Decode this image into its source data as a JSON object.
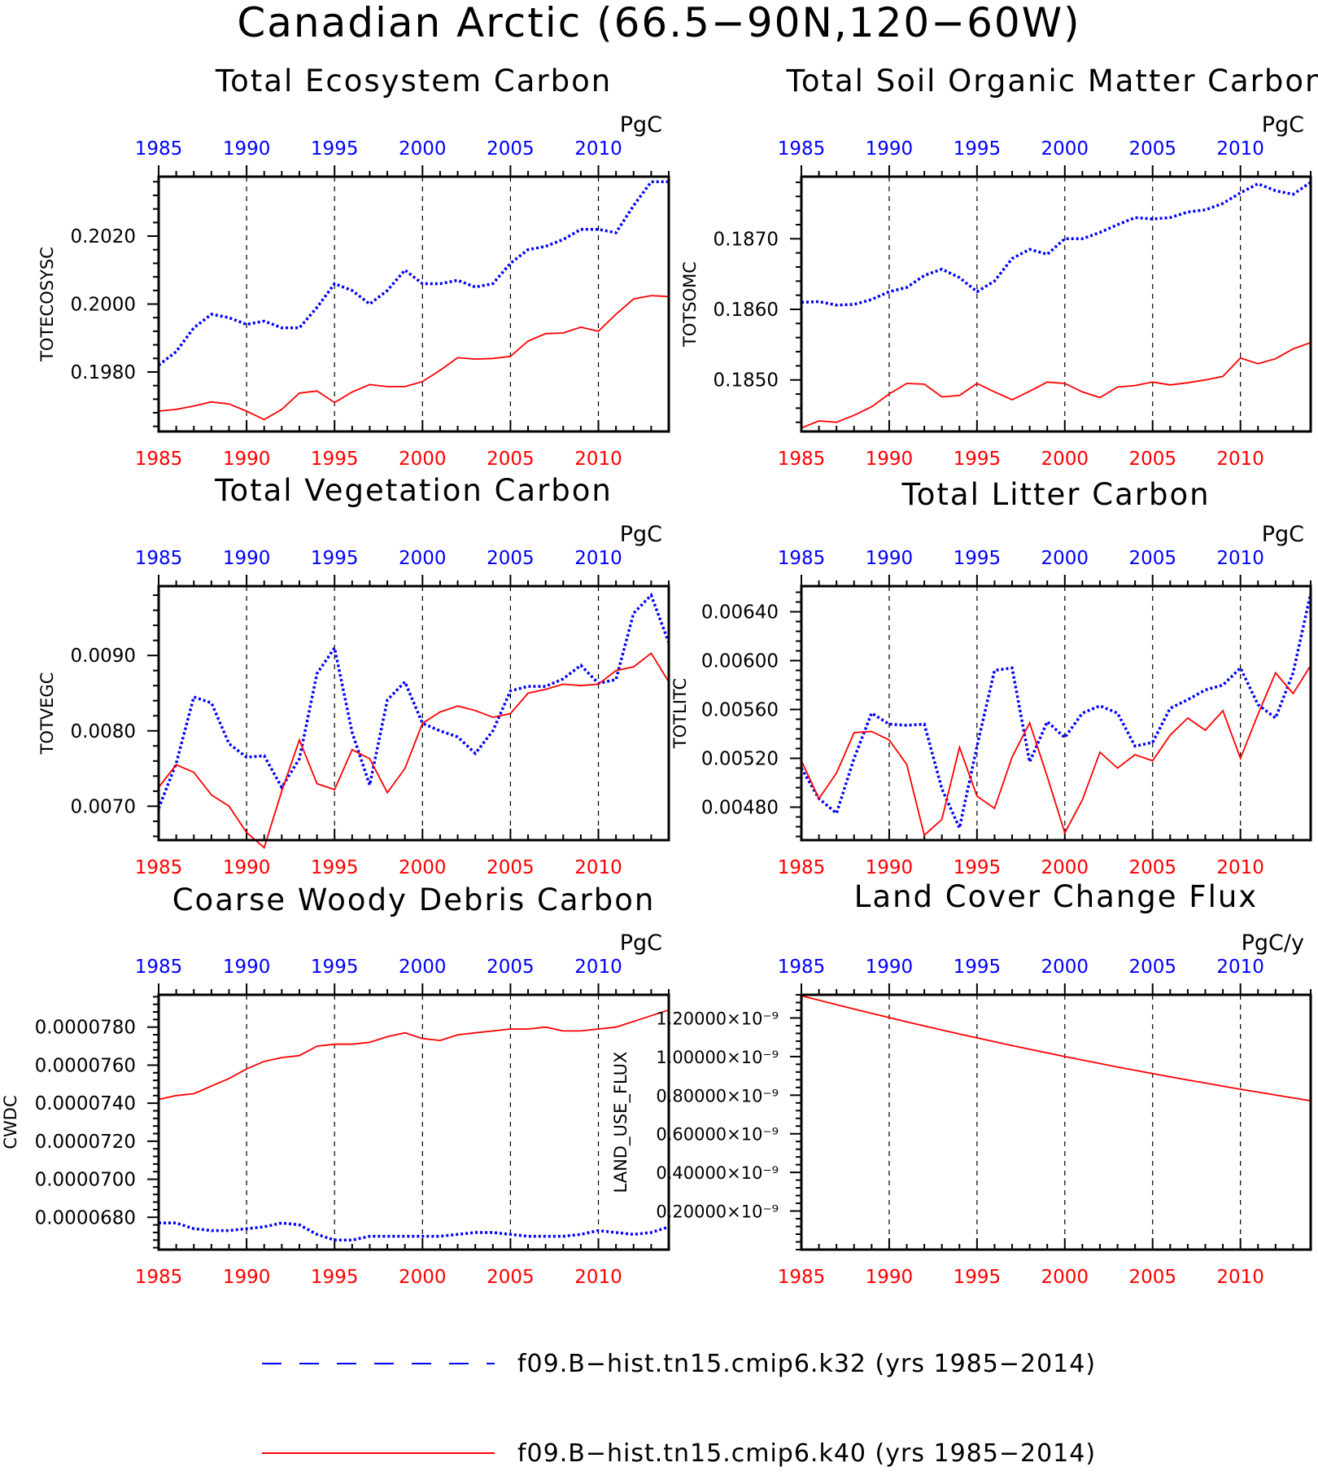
{
  "title": "Canadian Arctic (66.5−90N,120−60W)",
  "colors": {
    "k32": "#0000ff",
    "k40": "#ff0000",
    "axis": "#000000",
    "grid": "#000000"
  },
  "legend": [
    {
      "label": "f09.B−hist.tn15.cmip6.k32 (yrs 1985−2014)",
      "style": "dashed",
      "color": "#0000ff"
    },
    {
      "label": "f09.B−hist.tn15.cmip6.k40 (yrs 1985−2014)",
      "style": "solid",
      "color": "#ff0000"
    }
  ],
  "chart_data": [
    {
      "type": "line",
      "title": "Total Ecosystem Carbon",
      "ylabel": "TOTECOSYSC",
      "unit": "PgC",
      "xlim": [
        1985,
        2014
      ],
      "xticks": [
        1985,
        1990,
        1995,
        2000,
        2005,
        2010
      ],
      "ylim": [
        0.19625,
        0.20375
      ],
      "yticks": [
        0.198,
        0.2,
        0.202
      ],
      "ytick_labels": [
        "0.1980",
        "0.2000",
        "0.2020"
      ],
      "x": [
        1985,
        1986,
        1987,
        1988,
        1989,
        1990,
        1991,
        1992,
        1993,
        1994,
        1995,
        1996,
        1997,
        1998,
        1999,
        2000,
        2001,
        2002,
        2003,
        2004,
        2005,
        2006,
        2007,
        2008,
        2009,
        2010,
        2011,
        2012,
        2013,
        2014
      ],
      "series": [
        {
          "name": "f09.B−hist.tn15.cmip6.k32 (yrs 1985−2014)",
          "style": "dashed",
          "values": [
            0.1982,
            0.1986,
            0.1993,
            0.1997,
            0.1996,
            0.1994,
            0.1995,
            0.1993,
            0.1993,
            0.1999,
            0.2006,
            0.2004,
            0.2,
            0.2004,
            0.201,
            0.2006,
            0.2006,
            0.2007,
            0.2005,
            0.2006,
            0.2012,
            0.2016,
            0.2017,
            0.2019,
            0.2022,
            0.2022,
            0.2021,
            0.2029,
            0.2036,
            0.2036
          ]
        },
        {
          "name": "f09.B−hist.tn15.cmip6.k40 (yrs 1985−2014)",
          "style": "solid",
          "values": [
            0.19685,
            0.1969,
            0.197,
            0.19712,
            0.19706,
            0.19685,
            0.1966,
            0.1969,
            0.19738,
            0.19744,
            0.1971,
            0.19741,
            0.19763,
            0.19757,
            0.19757,
            0.19772,
            0.19805,
            0.19842,
            0.19838,
            0.1984,
            0.19846,
            0.19891,
            0.19913,
            0.19915,
            0.19932,
            0.1992,
            0.1997,
            0.20015,
            0.20025,
            0.20022
          ]
        }
      ]
    },
    {
      "type": "line",
      "title": "Total Soil Organic Matter Carbon",
      "ylabel": "TOTSOMC",
      "unit": "PgC",
      "xlim": [
        1985,
        2014
      ],
      "xticks": [
        1985,
        1990,
        1995,
        2000,
        2005,
        2010
      ],
      "ylim": [
        0.18427,
        0.18788
      ],
      "yticks": [
        0.185,
        0.186,
        0.187
      ],
      "ytick_labels": [
        "0.1850",
        "0.1860",
        "0.1870"
      ],
      "x": [
        1985,
        1986,
        1987,
        1988,
        1989,
        1990,
        1991,
        1992,
        1993,
        1994,
        1995,
        1996,
        1997,
        1998,
        1999,
        2000,
        2001,
        2002,
        2003,
        2004,
        2005,
        2006,
        2007,
        2008,
        2009,
        2010,
        2011,
        2012,
        2013,
        2014
      ],
      "series": [
        {
          "name": "f09.B−hist.tn15.cmip6.k32 (yrs 1985−2014)",
          "style": "dashed",
          "values": [
            0.1861,
            0.18611,
            0.18606,
            0.18607,
            0.18614,
            0.18625,
            0.18631,
            0.18648,
            0.18657,
            0.18645,
            0.18625,
            0.1864,
            0.18672,
            0.18685,
            0.18678,
            0.187,
            0.187,
            0.18709,
            0.1872,
            0.1873,
            0.18728,
            0.1873,
            0.18738,
            0.18741,
            0.1875,
            0.18765,
            0.18778,
            0.18768,
            0.18763,
            0.1878
          ]
        },
        {
          "name": "f09.B−hist.tn15.cmip6.k40 (yrs 1985−2014)",
          "style": "solid",
          "values": [
            0.18432,
            0.18442,
            0.1844,
            0.1845,
            0.18462,
            0.1848,
            0.18495,
            0.18494,
            0.18476,
            0.18478,
            0.18495,
            0.18483,
            0.18472,
            0.18484,
            0.18497,
            0.18495,
            0.18483,
            0.18475,
            0.1849,
            0.18492,
            0.18497,
            0.18493,
            0.18496,
            0.185,
            0.18505,
            0.18531,
            0.18523,
            0.1853,
            0.18544,
            0.18553
          ]
        }
      ]
    },
    {
      "type": "line",
      "title": "Total Vegetation Carbon",
      "ylabel": "TOTVEGC",
      "unit": "PgC",
      "xlim": [
        1985,
        2014
      ],
      "xticks": [
        1985,
        1990,
        1995,
        2000,
        2005,
        2010
      ],
      "ylim": [
        0.00655,
        0.00992
      ],
      "yticks": [
        0.007,
        0.008,
        0.009
      ],
      "ytick_labels": [
        "0.0070",
        "0.0080",
        "0.0090"
      ],
      "x": [
        1985,
        1986,
        1987,
        1988,
        1989,
        1990,
        1991,
        1992,
        1993,
        1994,
        1995,
        1996,
        1997,
        1998,
        1999,
        2000,
        2001,
        2002,
        2003,
        2004,
        2005,
        2006,
        2007,
        2008,
        2009,
        2010,
        2011,
        2012,
        2013,
        2014
      ],
      "series": [
        {
          "name": "f09.B−hist.tn15.cmip6.k32 (yrs 1985−2014)",
          "style": "dashed",
          "values": [
            0.00697,
            0.00757,
            0.00845,
            0.00837,
            0.00783,
            0.00765,
            0.00767,
            0.00725,
            0.00763,
            0.00876,
            0.0091,
            0.00798,
            0.00728,
            0.00841,
            0.00865,
            0.0081,
            0.008,
            0.00792,
            0.0077,
            0.008,
            0.00853,
            0.00859,
            0.00859,
            0.00869,
            0.00887,
            0.00863,
            0.00868,
            0.00956,
            0.0098,
            0.00917
          ]
        },
        {
          "name": "f09.B−hist.tn15.cmip6.k40 (yrs 1985−2014)",
          "style": "solid",
          "values": [
            0.00725,
            0.00755,
            0.00745,
            0.00715,
            0.007,
            0.00665,
            0.00645,
            0.0072,
            0.00788,
            0.0073,
            0.00722,
            0.00775,
            0.00763,
            0.00718,
            0.0075,
            0.0081,
            0.00825,
            0.00833,
            0.00827,
            0.00818,
            0.00823,
            0.0085,
            0.00855,
            0.00862,
            0.0086,
            0.00862,
            0.0088,
            0.00885,
            0.00903,
            0.00865
          ]
        }
      ]
    },
    {
      "type": "line",
      "title": "Total Litter Carbon",
      "ylabel": "TOTLITC",
      "unit": "PgC",
      "xlim": [
        1985,
        2014
      ],
      "xticks": [
        1985,
        1990,
        1995,
        2000,
        2005,
        2010
      ],
      "ylim": [
        0.00453,
        0.00661
      ],
      "yticks": [
        0.0048,
        0.0052,
        0.0056,
        0.006,
        0.0064
      ],
      "ytick_labels": [
        "0.00480",
        "0.00520",
        "0.00560",
        "0.00600",
        "0.00640"
      ],
      "x": [
        1985,
        1986,
        1987,
        1988,
        1989,
        1990,
        1991,
        1992,
        1993,
        1994,
        1995,
        1996,
        1997,
        1998,
        1999,
        2000,
        2001,
        2002,
        2003,
        2004,
        2005,
        2006,
        2007,
        2008,
        2009,
        2010,
        2011,
        2012,
        2013,
        2014
      ],
      "series": [
        {
          "name": "f09.B−hist.tn15.cmip6.k32 (yrs 1985−2014)",
          "style": "dashed",
          "values": [
            0.00512,
            0.00487,
            0.00475,
            0.0052,
            0.00557,
            0.00548,
            0.00547,
            0.00548,
            0.00495,
            0.00463,
            0.0053,
            0.00592,
            0.00594,
            0.00517,
            0.0055,
            0.00537,
            0.00557,
            0.00563,
            0.00557,
            0.0053,
            0.00533,
            0.00561,
            0.00568,
            0.00576,
            0.0058,
            0.00594,
            0.00564,
            0.00553,
            0.0059,
            0.00655
          ]
        },
        {
          "name": "f09.B−hist.tn15.cmip6.k40 (yrs 1985−2014)",
          "style": "solid",
          "values": [
            0.00518,
            0.00487,
            0.00508,
            0.00541,
            0.00542,
            0.00535,
            0.00515,
            0.00457,
            0.0047,
            0.00529,
            0.00489,
            0.00479,
            0.00521,
            0.00549,
            0.00505,
            0.00459,
            0.00486,
            0.00525,
            0.00512,
            0.00523,
            0.00518,
            0.00539,
            0.00553,
            0.00543,
            0.00559,
            0.0052,
            0.00556,
            0.0059,
            0.00573,
            0.00596
          ]
        }
      ]
    },
    {
      "type": "line",
      "title": "Coarse Woody Debris Carbon",
      "ylabel": "CWDC",
      "unit": "PgC",
      "xlim": [
        1985,
        2014
      ],
      "xticks": [
        1985,
        1990,
        1995,
        2000,
        2005,
        2010
      ],
      "ylim": [
        6.63e-05,
        7.97e-05
      ],
      "yticks": [
        6.8e-05,
        7e-05,
        7.2e-05,
        7.4e-05,
        7.6e-05,
        7.8e-05
      ],
      "ytick_labels": [
        "0.0000680",
        "0.0000700",
        "0.0000720",
        "0.0000740",
        "0.0000760",
        "0.0000780"
      ],
      "x": [
        1985,
        1986,
        1987,
        1988,
        1989,
        1990,
        1991,
        1992,
        1993,
        1994,
        1995,
        1996,
        1997,
        1998,
        1999,
        2000,
        2001,
        2002,
        2003,
        2004,
        2005,
        2006,
        2007,
        2008,
        2009,
        2010,
        2011,
        2012,
        2013,
        2014
      ],
      "series": [
        {
          "name": "f09.B−hist.tn15.cmip6.k32 (yrs 1985−2014)",
          "style": "dashed",
          "values": [
            6.77e-05,
            6.77e-05,
            6.74e-05,
            6.73e-05,
            6.73e-05,
            6.74e-05,
            6.75e-05,
            6.77e-05,
            6.76e-05,
            6.71e-05,
            6.68e-05,
            6.68e-05,
            6.7e-05,
            6.7e-05,
            6.7e-05,
            6.7e-05,
            6.7e-05,
            6.71e-05,
            6.72e-05,
            6.72e-05,
            6.71e-05,
            6.7e-05,
            6.7e-05,
            6.7e-05,
            6.71e-05,
            6.73e-05,
            6.72e-05,
            6.71e-05,
            6.72e-05,
            6.75e-05
          ]
        },
        {
          "name": "f09.B−hist.tn15.cmip6.k40 (yrs 1985−2014)",
          "style": "solid",
          "values": [
            7.42e-05,
            7.44e-05,
            7.45e-05,
            7.49e-05,
            7.53e-05,
            7.58e-05,
            7.62e-05,
            7.64e-05,
            7.65e-05,
            7.7e-05,
            7.71e-05,
            7.71e-05,
            7.72e-05,
            7.75e-05,
            7.77e-05,
            7.74e-05,
            7.73e-05,
            7.76e-05,
            7.77e-05,
            7.78e-05,
            7.79e-05,
            7.79e-05,
            7.8e-05,
            7.78e-05,
            7.78e-05,
            7.79e-05,
            7.8e-05,
            7.83e-05,
            7.86e-05,
            7.89e-05
          ]
        }
      ]
    },
    {
      "type": "line",
      "title": "Land Cover Change Flux",
      "ylabel": "LAND_USE_FLUX",
      "unit": "PgC/y",
      "xlim": [
        1985,
        2014
      ],
      "xticks": [
        1985,
        1990,
        1995,
        2000,
        2005,
        2010
      ],
      "ylim": [
        0.0,
        1.32e-09
      ],
      "yticks": [
        2e-10,
        4e-10,
        6e-10,
        8e-10,
        1e-09,
        1.2e-09
      ],
      "ytick_labels": [
        "0.20000×10⁻⁹",
        "0.40000×10⁻⁹",
        "0.60000×10⁻⁹",
        "0.80000×10⁻⁹",
        "1.00000×10⁻⁹",
        "1.20000×10⁻⁹"
      ],
      "x": [
        1985,
        1986,
        1987,
        1988,
        1989,
        1990,
        1991,
        1992,
        1993,
        1994,
        1995,
        1996,
        1997,
        1998,
        1999,
        2000,
        2001,
        2002,
        2003,
        2004,
        2005,
        2006,
        2007,
        2008,
        2009,
        2010,
        2011,
        2012,
        2013,
        2014
      ],
      "series": [
        {
          "name": "f09.B−hist.tn15.cmip6.k40 (yrs 1985−2014)",
          "style": "solid",
          "values": [
            1.315e-09,
            1.292e-09,
            1.269e-09,
            1.246e-09,
            1.224e-09,
            1.202e-09,
            1.18e-09,
            1.159e-09,
            1.138e-09,
            1.117e-09,
            1.097e-09,
            1.077e-09,
            1.057e-09,
            1.038e-09,
            1.019e-09,
            1e-09,
            9.82e-10,
            9.64e-10,
            9.46e-10,
            9.29e-10,
            9.12e-10,
            8.95e-10,
            8.79e-10,
            8.63e-10,
            8.47e-10,
            8.31e-10,
            8.16e-10,
            8.01e-10,
            7.86e-10,
            7.71e-10
          ]
        }
      ]
    }
  ]
}
